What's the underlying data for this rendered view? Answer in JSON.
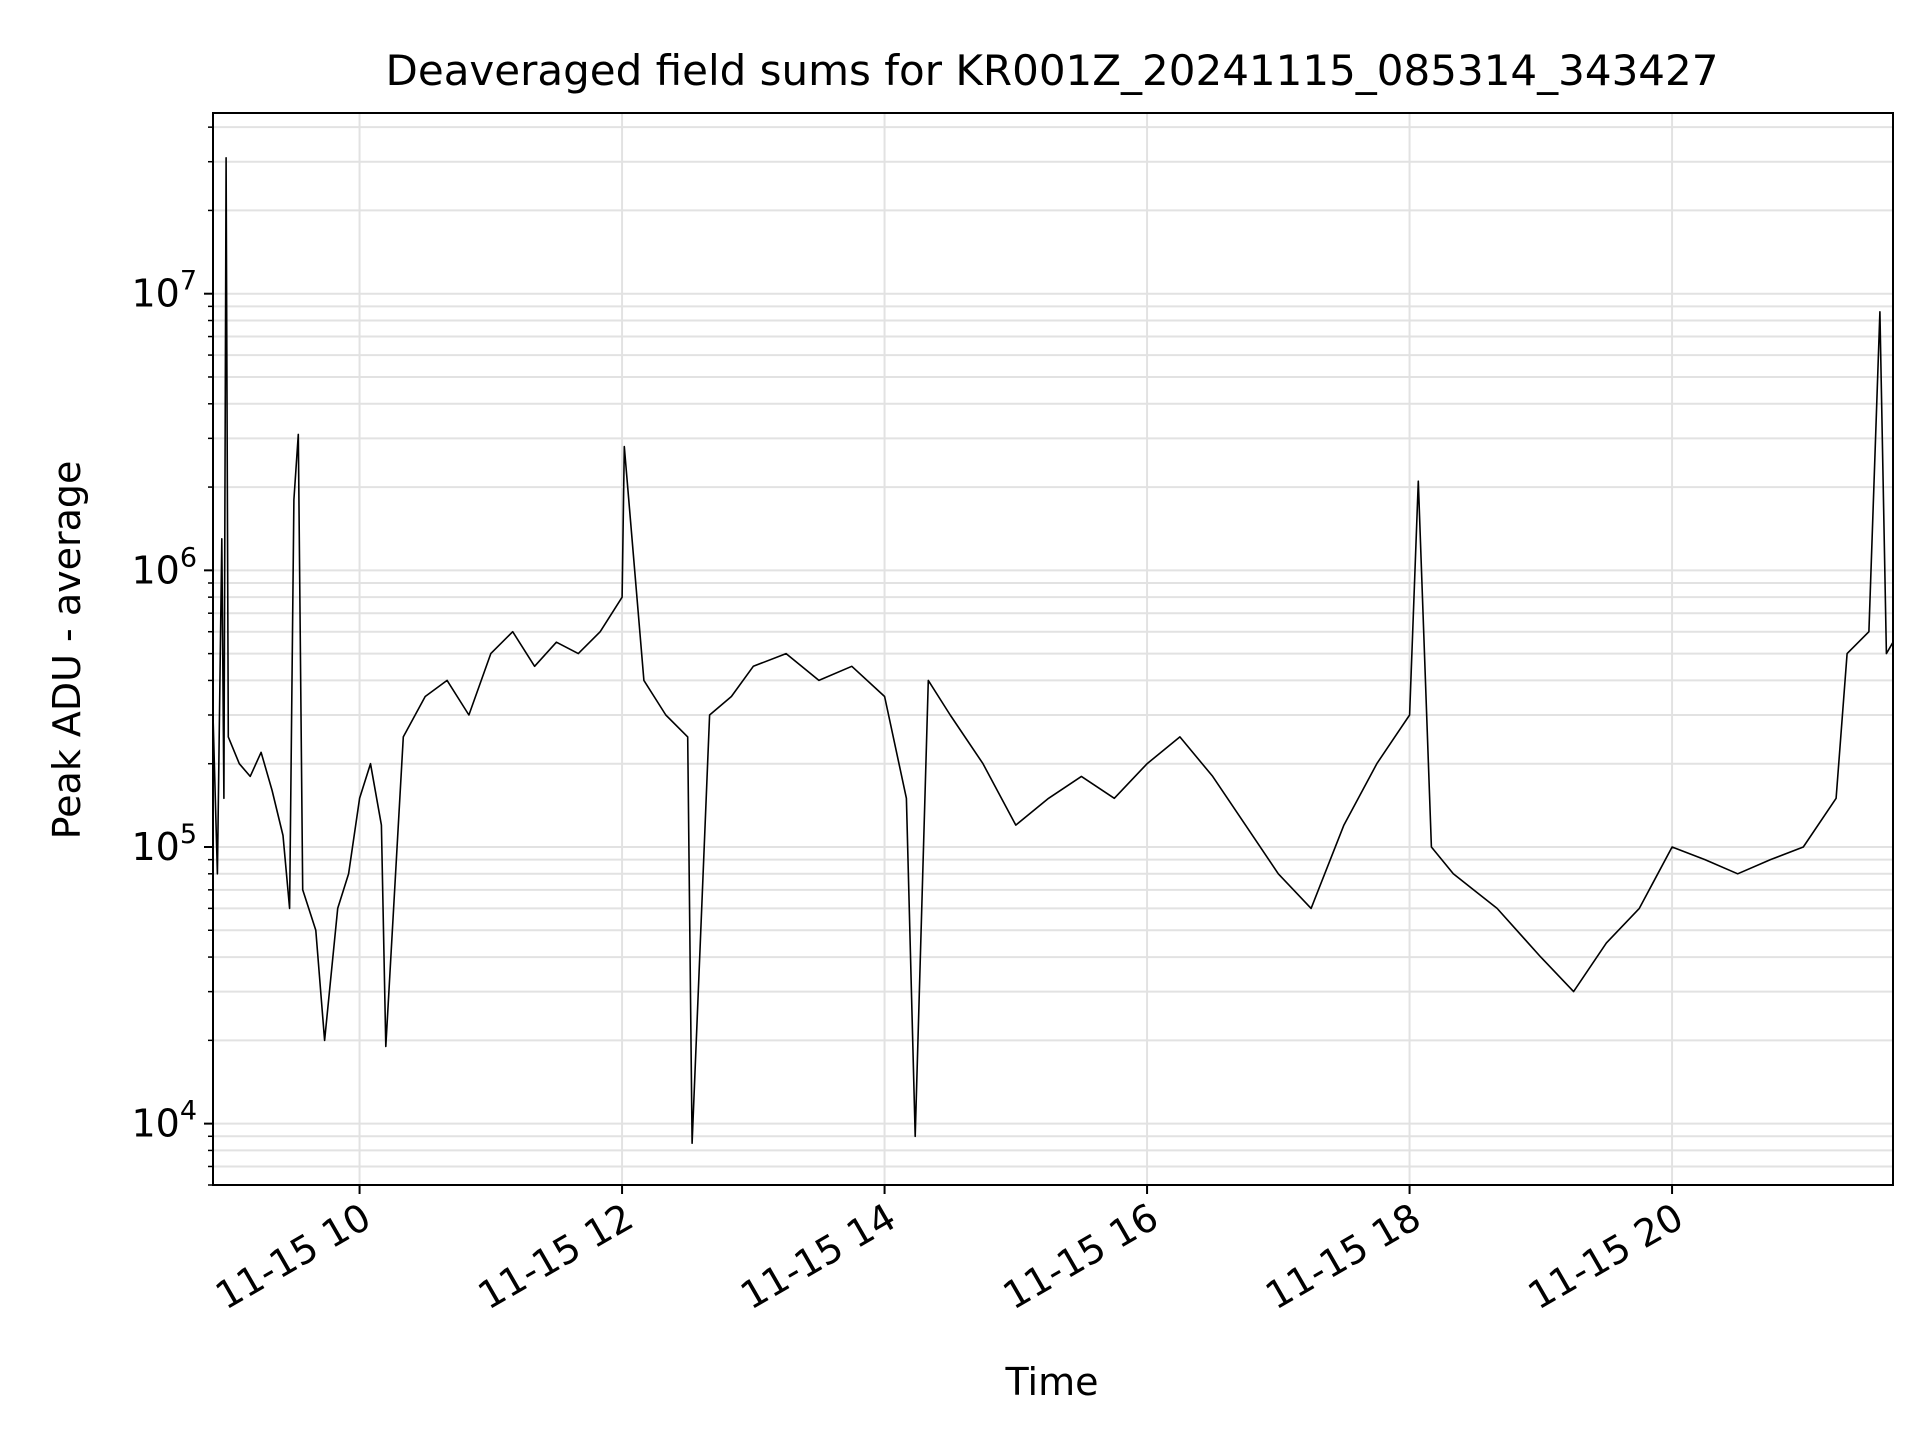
{
  "chart_data": {
    "type": "line",
    "title": "Deaveraged field sums for KR001Z_20241115_085314_343427",
    "xlabel": "Time",
    "ylabel": "Peak ADU - average",
    "yscale": "log",
    "ylim": [
      6000,
      45000000
    ],
    "xlim": [
      "2024-11-15 08:53",
      "2024-11-15 21:41"
    ],
    "grid": true,
    "x_ticks": [
      {
        "t": "2024-11-15 10:00",
        "label": "11-15 10"
      },
      {
        "t": "2024-11-15 12:00",
        "label": "11-15 12"
      },
      {
        "t": "2024-11-15 14:00",
        "label": "11-15 14"
      },
      {
        "t": "2024-11-15 16:00",
        "label": "11-15 16"
      },
      {
        "t": "2024-11-15 18:00",
        "label": "11-15 18"
      },
      {
        "t": "2024-11-15 20:00",
        "label": "11-15 20"
      }
    ],
    "y_ticks": [
      {
        "value": 10000,
        "base": "10",
        "exp": "4"
      },
      {
        "value": 100000,
        "base": "10",
        "exp": "5"
      },
      {
        "value": 1000000,
        "base": "10",
        "exp": "6"
      },
      {
        "value": 10000000,
        "base": "10",
        "exp": "7"
      }
    ],
    "series": [
      {
        "color": "#000000",
        "points": [
          [
            "2024-11-15 08:53",
            300000
          ],
          [
            "2024-11-15 08:55",
            80000
          ],
          [
            "2024-11-15 08:57",
            1300000
          ],
          [
            "2024-11-15 08:58",
            150000
          ],
          [
            "2024-11-15 08:59",
            31000000
          ],
          [
            "2024-11-15 09:00",
            250000
          ],
          [
            "2024-11-15 09:05",
            200000
          ],
          [
            "2024-11-15 09:10",
            180000
          ],
          [
            "2024-11-15 09:15",
            220000
          ],
          [
            "2024-11-15 09:20",
            160000
          ],
          [
            "2024-11-15 09:25",
            110000
          ],
          [
            "2024-11-15 09:28",
            60000
          ],
          [
            "2024-11-15 09:30",
            1800000
          ],
          [
            "2024-11-15 09:32",
            3100000
          ],
          [
            "2024-11-15 09:34",
            70000
          ],
          [
            "2024-11-15 09:40",
            50000
          ],
          [
            "2024-11-15 09:44",
            20000
          ],
          [
            "2024-11-15 09:50",
            60000
          ],
          [
            "2024-11-15 09:55",
            80000
          ],
          [
            "2024-11-15 10:00",
            150000
          ],
          [
            "2024-11-15 10:05",
            200000
          ],
          [
            "2024-11-15 10:10",
            120000
          ],
          [
            "2024-11-15 10:12",
            19000
          ],
          [
            "2024-11-15 10:20",
            250000
          ],
          [
            "2024-11-15 10:30",
            350000
          ],
          [
            "2024-11-15 10:40",
            400000
          ],
          [
            "2024-11-15 10:50",
            300000
          ],
          [
            "2024-11-15 11:00",
            500000
          ],
          [
            "2024-11-15 11:10",
            600000
          ],
          [
            "2024-11-15 11:20",
            450000
          ],
          [
            "2024-11-15 11:30",
            550000
          ],
          [
            "2024-11-15 11:40",
            500000
          ],
          [
            "2024-11-15 11:50",
            600000
          ],
          [
            "2024-11-15 12:00",
            800000
          ],
          [
            "2024-11-15 12:01",
            2800000
          ],
          [
            "2024-11-15 12:10",
            400000
          ],
          [
            "2024-11-15 12:20",
            300000
          ],
          [
            "2024-11-15 12:30",
            250000
          ],
          [
            "2024-11-15 12:32",
            8500
          ],
          [
            "2024-11-15 12:40",
            300000
          ],
          [
            "2024-11-15 12:50",
            350000
          ],
          [
            "2024-11-15 13:00",
            450000
          ],
          [
            "2024-11-15 13:15",
            500000
          ],
          [
            "2024-11-15 13:30",
            400000
          ],
          [
            "2024-11-15 13:45",
            450000
          ],
          [
            "2024-11-15 14:00",
            350000
          ],
          [
            "2024-11-15 14:10",
            150000
          ],
          [
            "2024-11-15 14:14",
            9000
          ],
          [
            "2024-11-15 14:20",
            400000
          ],
          [
            "2024-11-15 14:30",
            300000
          ],
          [
            "2024-11-15 14:45",
            200000
          ],
          [
            "2024-11-15 15:00",
            120000
          ],
          [
            "2024-11-15 15:15",
            150000
          ],
          [
            "2024-11-15 15:30",
            180000
          ],
          [
            "2024-11-15 15:45",
            150000
          ],
          [
            "2024-11-15 16:00",
            200000
          ],
          [
            "2024-11-15 16:15",
            250000
          ],
          [
            "2024-11-15 16:30",
            180000
          ],
          [
            "2024-11-15 16:45",
            120000
          ],
          [
            "2024-11-15 17:00",
            80000
          ],
          [
            "2024-11-15 17:15",
            60000
          ],
          [
            "2024-11-15 17:30",
            120000
          ],
          [
            "2024-11-15 17:45",
            200000
          ],
          [
            "2024-11-15 18:00",
            300000
          ],
          [
            "2024-11-15 18:04",
            2100000
          ],
          [
            "2024-11-15 18:10",
            100000
          ],
          [
            "2024-11-15 18:20",
            80000
          ],
          [
            "2024-11-15 18:40",
            60000
          ],
          [
            "2024-11-15 19:00",
            40000
          ],
          [
            "2024-11-15 19:15",
            30000
          ],
          [
            "2024-11-15 19:30",
            45000
          ],
          [
            "2024-11-15 19:45",
            60000
          ],
          [
            "2024-11-15 20:00",
            100000
          ],
          [
            "2024-11-15 20:15",
            90000
          ],
          [
            "2024-11-15 20:30",
            80000
          ],
          [
            "2024-11-15 20:45",
            90000
          ],
          [
            "2024-11-15 21:00",
            100000
          ],
          [
            "2024-11-15 21:15",
            150000
          ],
          [
            "2024-11-15 21:20",
            500000
          ],
          [
            "2024-11-15 21:30",
            600000
          ],
          [
            "2024-11-15 21:35",
            8600000
          ],
          [
            "2024-11-15 21:38",
            500000
          ],
          [
            "2024-11-15 21:41",
            550000
          ]
        ]
      }
    ]
  }
}
